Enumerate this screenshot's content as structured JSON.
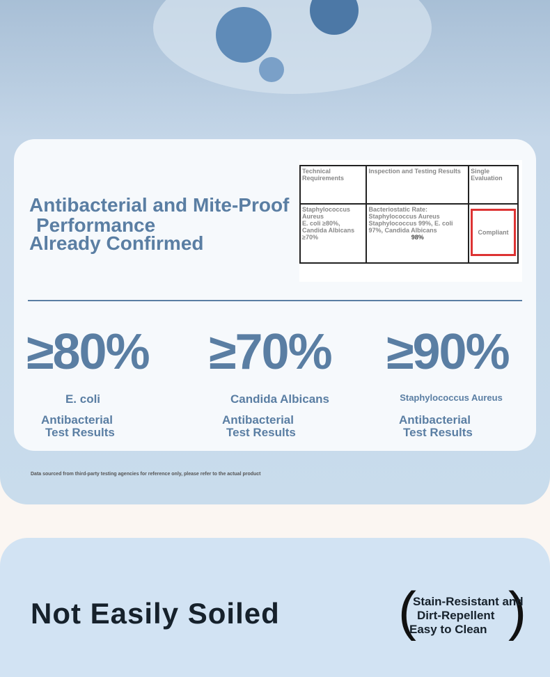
{
  "headline": {
    "lines": [
      "Antibacterial and Mite-Proof",
      "Performance",
      "Already Confirmed"
    ]
  },
  "table": {
    "headers": [
      "Technical Requirements",
      "Inspection and Testing Results",
      "Single Evaluation"
    ],
    "rows": [
      [
        [
          "Staphylococcus Aureus",
          "E. coli ≥80%,",
          "Candida Albicans ≥70%"
        ],
        [
          "Bacteriostatic Rate: Staphylococcus Aureus",
          "Staphylococcus 99%, E. coli",
          "97%, Candida Albicans",
          "98%"
        ],
        [
          "Compliant"
        ]
      ]
    ]
  },
  "stats": [
    {
      "value": "≥80%",
      "organism": "E. coli",
      "label": [
        "Antibacterial",
        "Test Results"
      ]
    },
    {
      "value": "≥70%",
      "organism": "Candida Albicans",
      "label": [
        "Antibacterial",
        "Test Results"
      ]
    },
    {
      "value": "≥90%",
      "organism": "Staphylococcus Aureus",
      "label": [
        "Antibacterial",
        "Test Results"
      ]
    }
  ],
  "footnote": "Data sourced from third-party testing agencies for reference only, please refer to the actual product",
  "section2": {
    "title": "Not Easily Soiled",
    "features": [
      "Stain-Resistant and",
      "Dirt-Repellent",
      "Easy to Clean"
    ]
  }
}
